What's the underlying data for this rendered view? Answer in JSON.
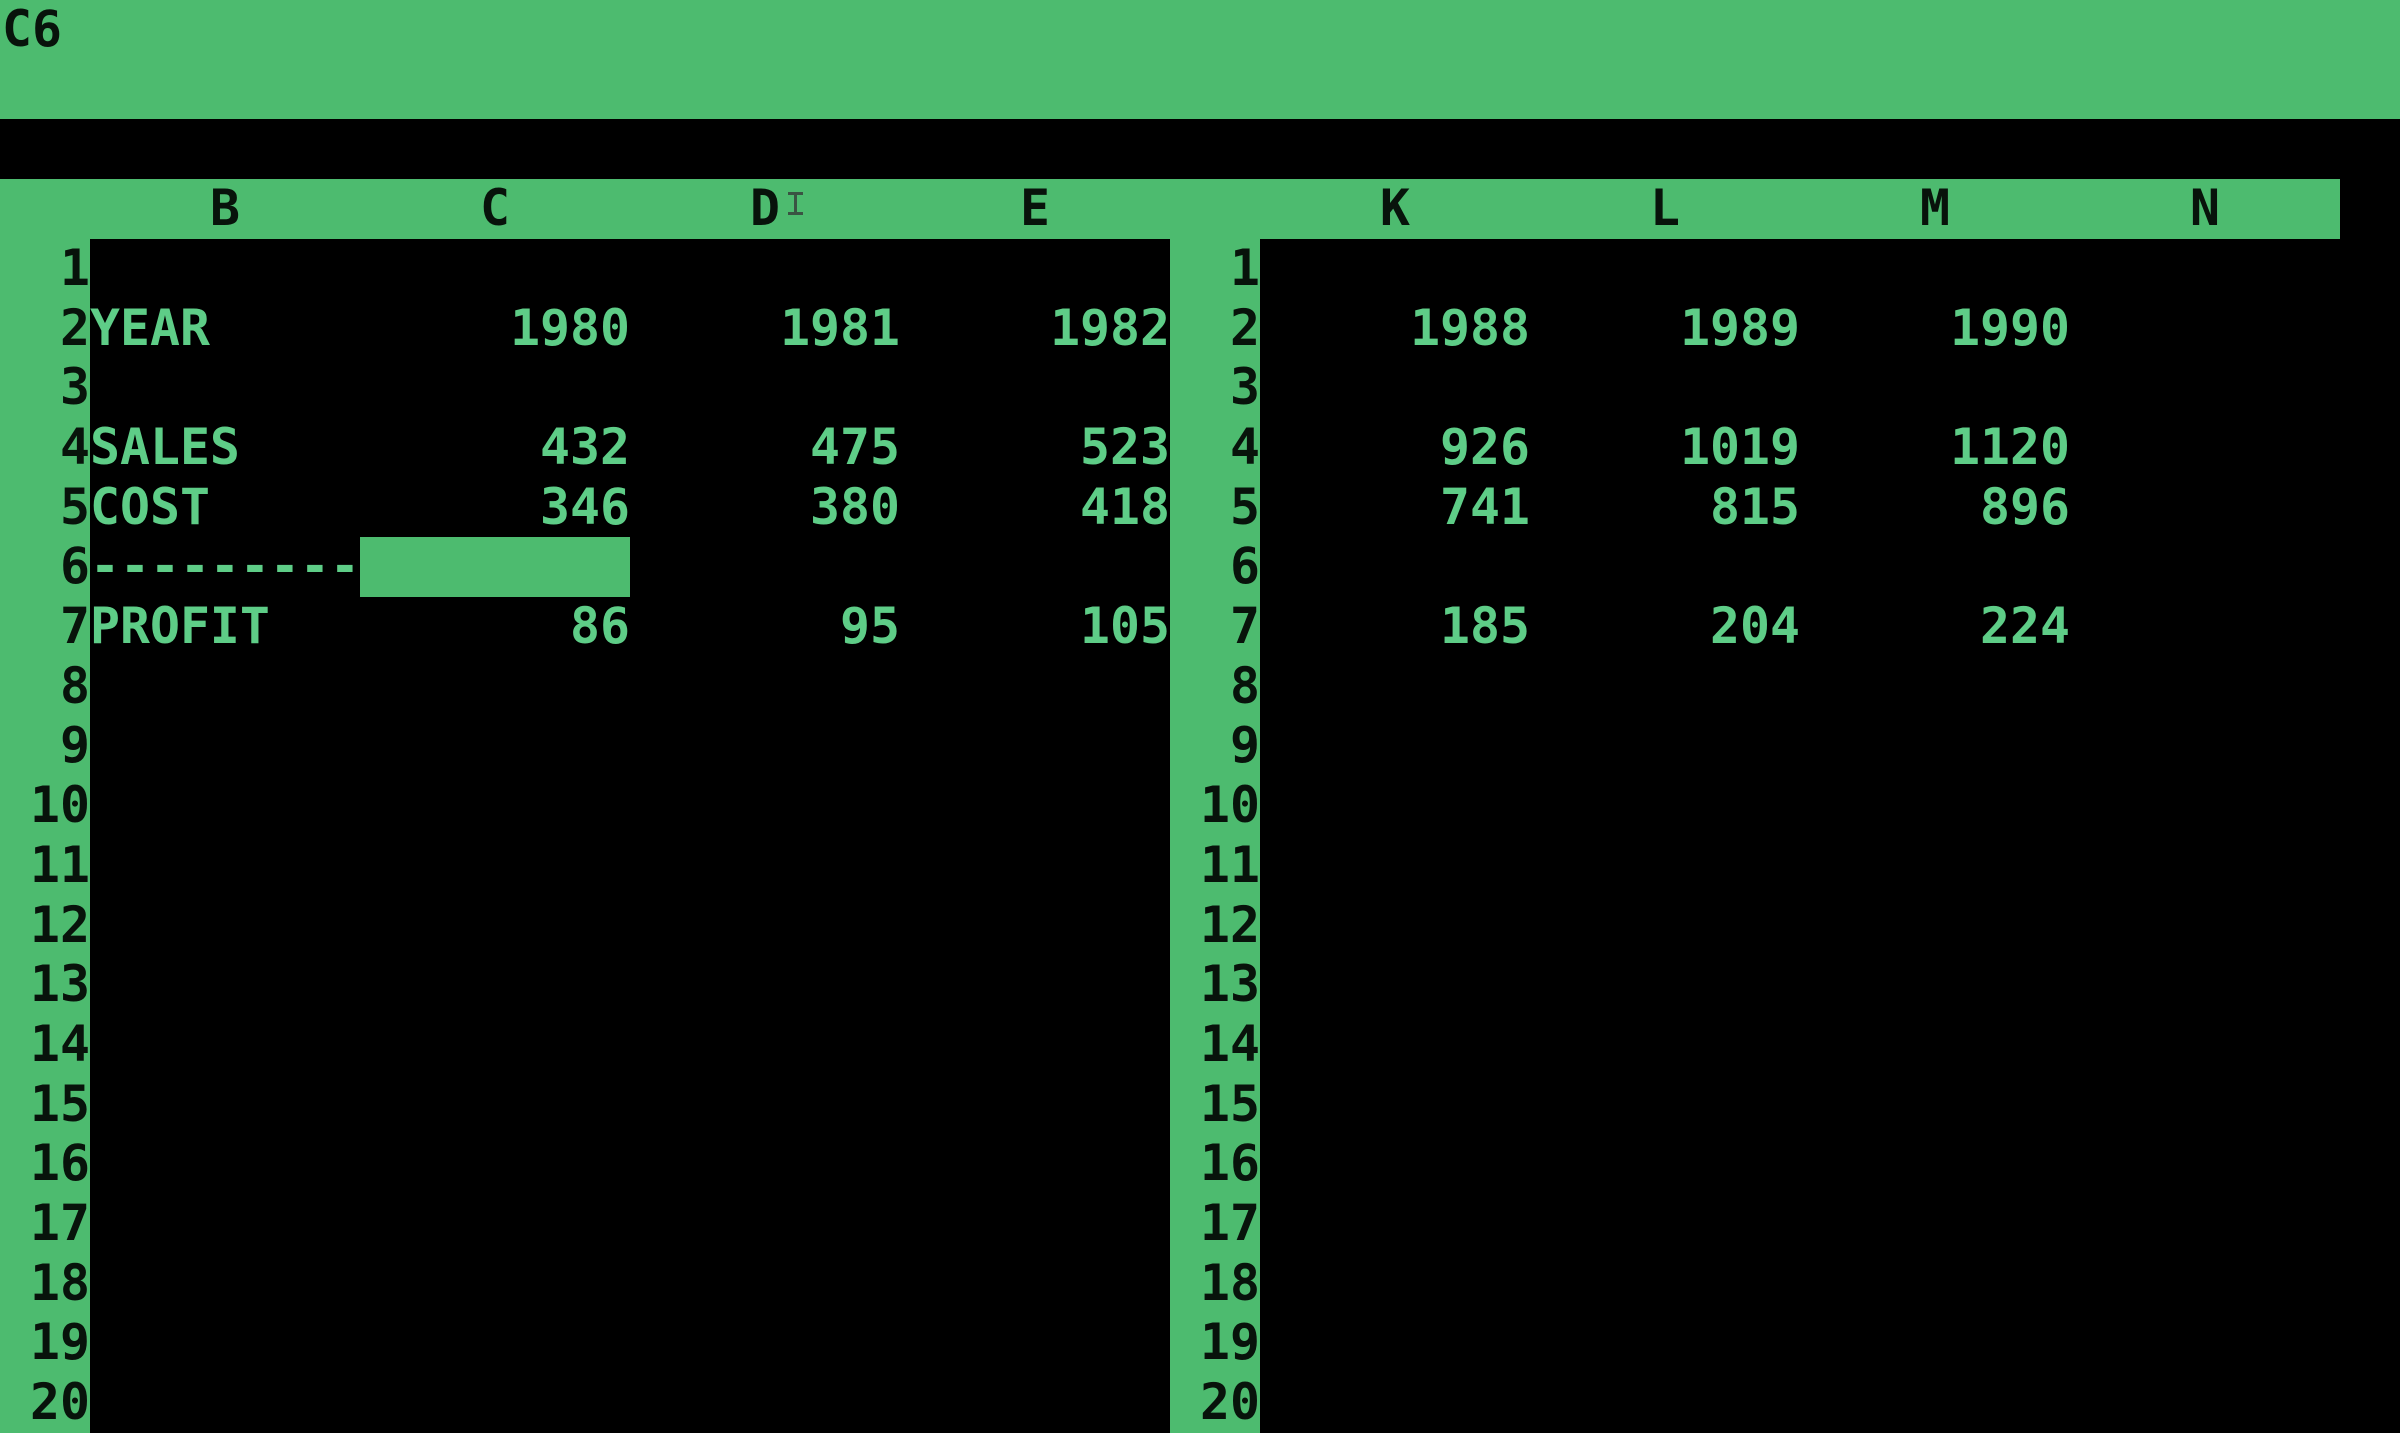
{
  "edit_bar": {
    "cell_reference": "C6"
  },
  "colors": {
    "screen_green": "#4dbb6f",
    "header_ink": "#08130b",
    "data_text_green": "#5ecd87",
    "screen_black": "#000000",
    "ibeam_gray": "#37433c"
  },
  "grid": {
    "visible_rows": [
      "1",
      "2",
      "3",
      "4",
      "5",
      "6",
      "7",
      "8",
      "9",
      "10",
      "11",
      "12",
      "13",
      "14",
      "15",
      "16",
      "17",
      "18",
      "19",
      "20"
    ]
  },
  "panes": {
    "left": {
      "columns": [
        "B",
        "C",
        "D",
        "E"
      ],
      "cells": [
        {
          "row": 2,
          "col": "B",
          "align": "left",
          "text": "YEAR"
        },
        {
          "row": 2,
          "col": "C",
          "align": "right",
          "text": "1980"
        },
        {
          "row": 2,
          "col": "D",
          "align": "right",
          "text": "1981"
        },
        {
          "row": 2,
          "col": "E",
          "align": "right",
          "text": "1982"
        },
        {
          "row": 4,
          "col": "B",
          "align": "left",
          "text": "SALES"
        },
        {
          "row": 4,
          "col": "C",
          "align": "right",
          "text": "432"
        },
        {
          "row": 4,
          "col": "D",
          "align": "right",
          "text": "475"
        },
        {
          "row": 4,
          "col": "E",
          "align": "right",
          "text": "523"
        },
        {
          "row": 5,
          "col": "B",
          "align": "left",
          "text": "COST"
        },
        {
          "row": 5,
          "col": "C",
          "align": "right",
          "text": "346"
        },
        {
          "row": 5,
          "col": "D",
          "align": "right",
          "text": "380"
        },
        {
          "row": 5,
          "col": "E",
          "align": "right",
          "text": "418"
        },
        {
          "row": 6,
          "col": "B",
          "align": "left",
          "text": "---------"
        },
        {
          "row": 7,
          "col": "B",
          "align": "left",
          "text": "PROFIT"
        },
        {
          "row": 7,
          "col": "C",
          "align": "right",
          "text": "86"
        },
        {
          "row": 7,
          "col": "D",
          "align": "right",
          "text": "95"
        },
        {
          "row": 7,
          "col": "E",
          "align": "right",
          "text": "105"
        }
      ]
    },
    "right": {
      "columns": [
        "K",
        "L",
        "M",
        "N"
      ],
      "cells": [
        {
          "row": 2,
          "col": "K",
          "align": "right",
          "text": "1988"
        },
        {
          "row": 2,
          "col": "L",
          "align": "right",
          "text": "1989"
        },
        {
          "row": 2,
          "col": "M",
          "align": "right",
          "text": "1990"
        },
        {
          "row": 4,
          "col": "K",
          "align": "right",
          "text": "926"
        },
        {
          "row": 4,
          "col": "L",
          "align": "right",
          "text": "1019"
        },
        {
          "row": 4,
          "col": "M",
          "align": "right",
          "text": "1120"
        },
        {
          "row": 5,
          "col": "K",
          "align": "right",
          "text": "741"
        },
        {
          "row": 5,
          "col": "L",
          "align": "right",
          "text": "815"
        },
        {
          "row": 5,
          "col": "M",
          "align": "right",
          "text": "896"
        },
        {
          "row": 7,
          "col": "K",
          "align": "right",
          "text": "185"
        },
        {
          "row": 7,
          "col": "L",
          "align": "right",
          "text": "204"
        },
        {
          "row": 7,
          "col": "M",
          "align": "right",
          "text": "224"
        }
      ]
    }
  },
  "cursor": {
    "cell": "C6"
  }
}
